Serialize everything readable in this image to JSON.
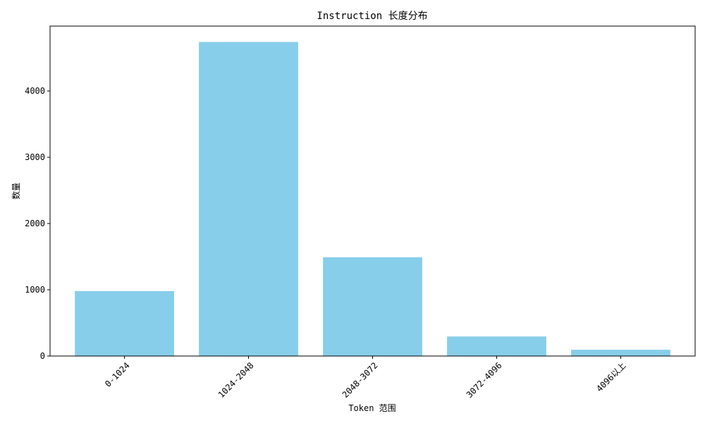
{
  "chart_data": {
    "type": "bar",
    "title": "Instruction 长度分布",
    "xlabel": "Token 范围",
    "ylabel": "数量",
    "categories": [
      "0-1024",
      "1024-2048",
      "2048-3072",
      "3072-4096",
      "4096以上"
    ],
    "values": [
      980,
      4740,
      1490,
      295,
      95
    ],
    "ylim": [
      0,
      4980
    ],
    "yticks": [
      0,
      1000,
      2000,
      3000,
      4000
    ],
    "bar_color": "#87CEEB",
    "grid": false,
    "legend": "none"
  }
}
